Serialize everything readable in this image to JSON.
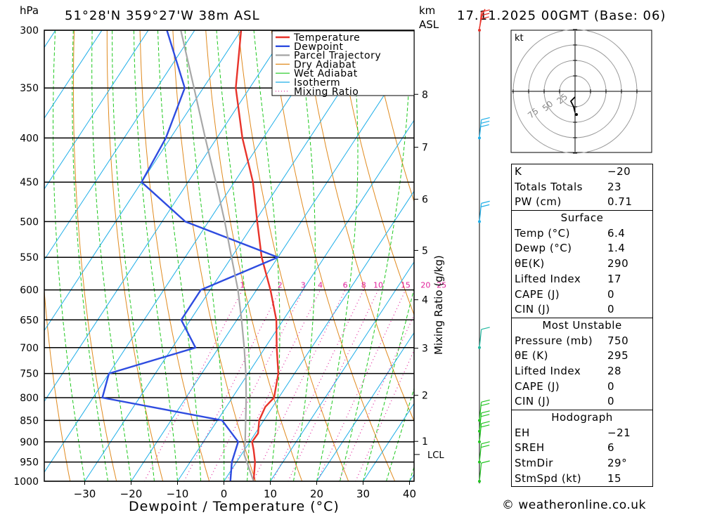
{
  "header": {
    "pressure_unit": "hPa",
    "location": "51°28'N 359°27'W 38m ASL",
    "km_label": "km",
    "asl_label": "ASL",
    "datetime": "17.11.2025 00GMT (Base: 06)"
  },
  "chart_data": {
    "type": "line",
    "title": "51°28'N 359°27'W 38m ASL",
    "xlabel": "Dewpoint / Temperature (°C)",
    "ylabel": "hPa",
    "mixing_ratio_label": "Mixing Ratio (g/kg)",
    "xlim": [
      -40,
      40
    ],
    "ylim": [
      1000,
      300
    ],
    "pressure_levels": [
      300,
      350,
      400,
      450,
      500,
      550,
      600,
      650,
      700,
      750,
      800,
      850,
      900,
      950,
      1000
    ],
    "pressure_labels": [
      "300",
      "350",
      "400",
      "450",
      "500",
      "550",
      "600",
      "650",
      "700",
      "750",
      "800",
      "850",
      "900",
      "950",
      "1000"
    ],
    "temperature_ticks": [
      -30,
      -20,
      -10,
      0,
      10,
      20,
      30,
      40
    ],
    "temperature_tick_labels": [
      "−30",
      "−20",
      "−10",
      "0",
      "10",
      "20",
      "30",
      "40"
    ],
    "km_ticks": [
      {
        "label": "8",
        "p": 356
      },
      {
        "label": "7",
        "p": 410
      },
      {
        "label": "6",
        "p": 471
      },
      {
        "label": "5",
        "p": 540
      },
      {
        "label": "4",
        "p": 616
      },
      {
        "label": "3",
        "p": 701
      },
      {
        "label": "2",
        "p": 795
      },
      {
        "label": "1",
        "p": 899
      }
    ],
    "lcl": {
      "label": "LCL",
      "p": 931
    },
    "mixing_ratio_values": [
      1,
      2,
      3,
      4,
      6,
      8,
      10,
      15,
      20,
      25
    ],
    "mixing_ratio_labels": [
      "1",
      "2",
      "3",
      "4",
      "6",
      "8",
      "10",
      "15",
      "20",
      "25"
    ],
    "legend": [
      "Temperature",
      "Dewpoint",
      "Parcel Trajectory",
      "Dry Adiabat",
      "Wet Adiabat",
      "Isotherm",
      "Mixing Ratio"
    ],
    "series": [
      {
        "name": "Temperature",
        "color": "#e8332a",
        "points": [
          [
            1000,
            6.4
          ],
          [
            950,
            4.0
          ],
          [
            920,
            2.0
          ],
          [
            900,
            0.5
          ],
          [
            880,
            0.6
          ],
          [
            850,
            -1.0
          ],
          [
            820,
            -1.6
          ],
          [
            800,
            -1.0
          ],
          [
            750,
            -3.5
          ],
          [
            700,
            -7.5
          ],
          [
            650,
            -11.5
          ],
          [
            600,
            -17.0
          ],
          [
            550,
            -23.5
          ],
          [
            500,
            -29.5
          ],
          [
            450,
            -36.0
          ],
          [
            400,
            -44.5
          ],
          [
            350,
            -53.0
          ],
          [
            300,
            -60.0
          ]
        ]
      },
      {
        "name": "Dewpoint",
        "color": "#2e4ce0",
        "points": [
          [
            1000,
            1.4
          ],
          [
            950,
            -1.0
          ],
          [
            900,
            -2.5
          ],
          [
            850,
            -9.0
          ],
          [
            800,
            -38.0
          ],
          [
            750,
            -40.0
          ],
          [
            700,
            -25.0
          ],
          [
            650,
            -32.0
          ],
          [
            600,
            -32.0
          ],
          [
            550,
            -20.0
          ],
          [
            500,
            -45.0
          ],
          [
            450,
            -60.0
          ],
          [
            400,
            -61.0
          ],
          [
            350,
            -64.0
          ],
          [
            300,
            -76.0
          ]
        ]
      },
      {
        "name": "Parcel Trajectory",
        "color": "#a8a8a8",
        "points": [
          [
            1000,
            6.4
          ],
          [
            931,
            0.6
          ],
          [
            900,
            -1.0
          ],
          [
            850,
            -3.9
          ],
          [
            800,
            -7.0
          ],
          [
            750,
            -10.5
          ],
          [
            700,
            -14.5
          ],
          [
            650,
            -19.0
          ],
          [
            600,
            -24.0
          ],
          [
            550,
            -30.0
          ],
          [
            500,
            -36.5
          ],
          [
            450,
            -44.0
          ],
          [
            400,
            -52.5
          ],
          [
            350,
            -62.0
          ],
          [
            300,
            -73.0
          ]
        ]
      }
    ],
    "wind_barbs": [
      {
        "p": 1000,
        "speed_kt": 10
      },
      {
        "p": 950,
        "speed_kt": 15
      },
      {
        "p": 900,
        "speed_kt": 20
      },
      {
        "p": 875,
        "speed_kt": 20
      },
      {
        "p": 850,
        "speed_kt": 15
      },
      {
        "p": 700,
        "speed_kt": 10
      },
      {
        "p": 500,
        "speed_kt": 20
      },
      {
        "p": 400,
        "speed_kt": 25
      },
      {
        "p": 300,
        "speed_kt": 30
      }
    ]
  },
  "hodograph": {
    "unit_label": "kt",
    "ring_labels": [
      "25",
      "50",
      "75"
    ]
  },
  "indices": {
    "k_label": "K",
    "k_value": "−20",
    "tt_label": "Totals Totals",
    "tt_value": "23",
    "pw_label": "PW (cm)",
    "pw_value": "0.71",
    "surface_title": "Surface",
    "temp_label": "Temp (°C)",
    "temp_value": "6.4",
    "dewp_label": "Dewp (°C)",
    "dewp_value": "1.4",
    "theta_e_label": "θE(K)",
    "theta_e_value": "290",
    "li_label": "Lifted Index",
    "li_value": "17",
    "cape_label": "CAPE (J)",
    "cape_value": "0",
    "cin_label": "CIN (J)",
    "cin_value": "0",
    "mu_title": "Most Unstable",
    "mu_pressure_label": "Pressure (mb)",
    "mu_pressure_value": "750",
    "mu_theta_e_label": "θE (K)",
    "mu_theta_e_value": "295",
    "mu_li_label": "Lifted Index",
    "mu_li_value": "28",
    "mu_cape_label": "CAPE (J)",
    "mu_cape_value": "0",
    "mu_cin_label": "CIN (J)",
    "mu_cin_value": "0",
    "hodo_title": "Hodograph",
    "eh_label": "EH",
    "eh_value": "−21",
    "sreh_label": "SREH",
    "sreh_value": "6",
    "stmdir_label": "StmDir",
    "stmdir_value": "29°",
    "stmspd_label": "StmSpd (kt)",
    "stmspd_value": "15"
  },
  "copyright": "© weatheronline.co.uk",
  "colors": {
    "temperature": "#e8332a",
    "dewpoint": "#2e4ce0",
    "parcel": "#a8a8a8",
    "dry_adiabat": "#e08a1e",
    "wet_adiabat": "#1ec81e",
    "isotherm": "#1eaee8",
    "mixing_ratio": "#e0209a"
  }
}
